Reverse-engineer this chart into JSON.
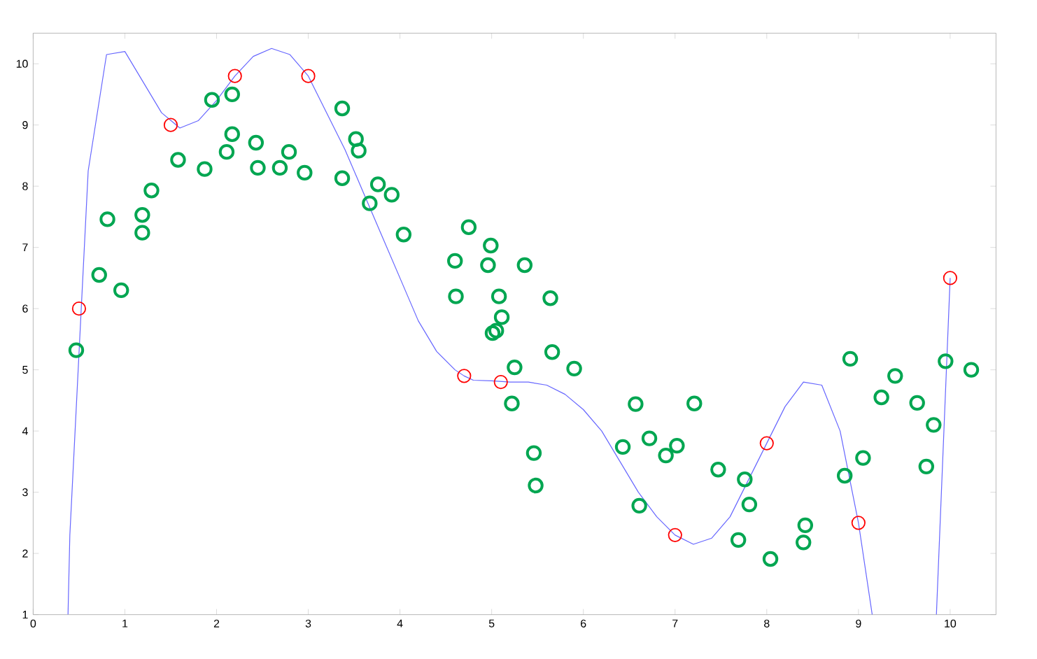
{
  "chart_data": {
    "type": "scatter",
    "xlim": [
      0,
      10.5
    ],
    "ylim": [
      1,
      10.5
    ],
    "xticks": [
      0,
      1,
      2,
      3,
      4,
      5,
      6,
      7,
      8,
      9,
      10
    ],
    "yticks": [
      1,
      2,
      3,
      4,
      5,
      6,
      7,
      8,
      9,
      10
    ],
    "grid": false,
    "legend": false,
    "series": [
      {
        "type": "line",
        "color": "#6666ff",
        "marker": "none",
        "line_style": "solid",
        "x": [
          0.38,
          0.4,
          0.6,
          0.8,
          1.0,
          1.2,
          1.4,
          1.6,
          1.8,
          2.0,
          2.2,
          2.4,
          2.6,
          2.8,
          3.0,
          3.2,
          3.4,
          3.6,
          3.8,
          4.0,
          4.2,
          4.4,
          4.6,
          4.7,
          4.8,
          5.0,
          5.2,
          5.4,
          5.6,
          5.8,
          6.0,
          6.2,
          6.4,
          6.6,
          6.8,
          7.0,
          7.2,
          7.4,
          7.6,
          7.8,
          8.0,
          8.2,
          8.4,
          8.6,
          8.8,
          9.0,
          9.15,
          9.5,
          9.85,
          10.0
        ],
        "values": [
          1,
          2.3,
          8.25,
          10.15,
          10.2,
          9.7,
          9.2,
          8.95,
          9.07,
          9.4,
          9.8,
          10.12,
          10.25,
          10.15,
          9.8,
          9.2,
          8.6,
          7.9,
          7.2,
          6.5,
          5.8,
          5.3,
          5.0,
          4.9,
          4.83,
          4.82,
          4.8,
          4.8,
          4.75,
          4.6,
          4.35,
          4.0,
          3.5,
          3.0,
          2.6,
          2.3,
          2.15,
          2.25,
          2.6,
          3.2,
          3.8,
          4.4,
          4.8,
          4.75,
          4.0,
          2.5,
          1,
          null,
          1,
          6.5
        ]
      },
      {
        "color": "#00a651",
        "marker": "circle",
        "x": [
          0.47,
          0.72,
          0.81,
          0.96,
          1.19,
          1.19,
          1.29,
          1.58,
          1.87,
          1.95,
          2.11,
          2.17,
          2.17,
          2.43,
          2.45,
          2.69,
          2.79,
          2.96,
          3.37,
          3.37,
          3.52,
          3.55,
          3.76,
          3.67,
          3.91,
          4.04,
          4.75,
          4.6,
          4.61,
          4.99,
          4.96,
          5.08,
          5.11,
          5.01,
          5.05,
          5.36,
          5.64,
          5.66,
          5.25,
          5.9,
          5.22,
          5.46,
          5.48,
          6.57,
          6.43,
          6.72,
          6.9,
          7.02,
          6.61,
          7.21,
          7.47,
          7.76,
          7.81,
          7.69,
          8.04,
          8.42,
          8.4,
          8.85,
          9.05,
          8.91,
          9.25,
          9.4,
          9.64,
          9.82,
          9.74,
          9.95,
          10.23
        ],
        "values": [
          5.32,
          6.55,
          7.46,
          6.3,
          7.53,
          7.24,
          7.93,
          8.43,
          8.28,
          9.41,
          8.56,
          9.5,
          8.85,
          8.71,
          8.3,
          8.3,
          8.56,
          8.22,
          9.27,
          8.13,
          8.77,
          8.58,
          8.03,
          7.72,
          7.86,
          7.21,
          7.33,
          6.78,
          6.2,
          7.03,
          6.71,
          6.2,
          5.86,
          5.6,
          5.64,
          6.71,
          6.17,
          5.29,
          5.04,
          5.02,
          4.45,
          3.64,
          3.11,
          4.44,
          3.74,
          3.88,
          3.6,
          3.76,
          2.78,
          4.45,
          3.37,
          3.21,
          2.8,
          2.22,
          1.91,
          2.46,
          2.18,
          3.27,
          3.56,
          5.18,
          4.55,
          4.9,
          4.46,
          4.1,
          3.42,
          5.14,
          5.0
        ]
      },
      {
        "color": "#ff0000",
        "marker": "circle",
        "x": [
          0.5,
          1.5,
          2.2,
          3.0,
          4.7,
          5.1,
          7.0,
          8.0,
          9.0,
          10.0
        ],
        "values": [
          6,
          9,
          9.8,
          9.8,
          4.9,
          4.8,
          2.3,
          3.8,
          2.5,
          6.5
        ]
      }
    ]
  }
}
